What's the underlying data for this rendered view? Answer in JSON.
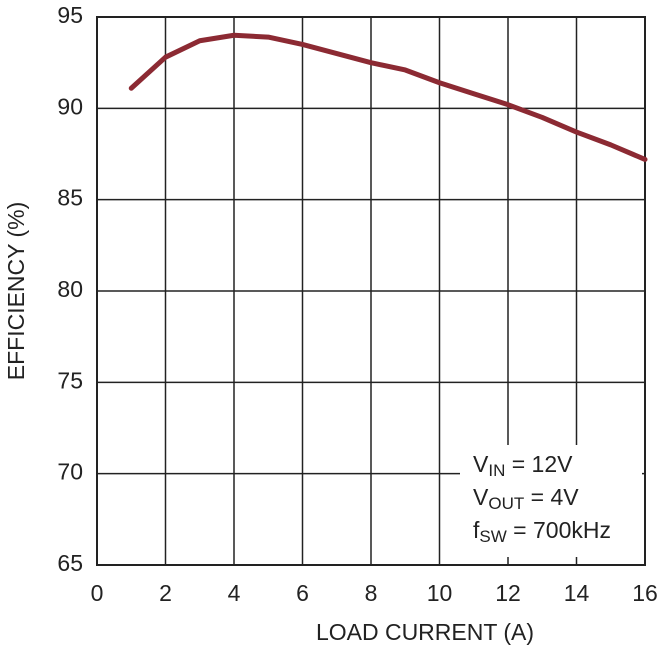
{
  "chart_data": {
    "type": "line",
    "xlabel": "LOAD CURRENT (A)",
    "ylabel": "EFFICIENCY (%)",
    "x": [
      1,
      2,
      3,
      4,
      5,
      6,
      7,
      8,
      9,
      10,
      11,
      12,
      13,
      14,
      15,
      16
    ],
    "values": [
      91.1,
      92.8,
      93.7,
      94.0,
      93.9,
      93.5,
      93.0,
      92.5,
      92.1,
      91.4,
      90.8,
      90.2,
      89.5,
      88.7,
      88.0,
      87.2
    ],
    "color": "#8c2a33",
    "xlim": [
      0,
      16
    ],
    "xticks": [
      0,
      2,
      4,
      6,
      8,
      10,
      12,
      14,
      16
    ],
    "ylim": [
      65,
      95
    ],
    "yticks": [
      65,
      70,
      75,
      80,
      85,
      90,
      95
    ],
    "grid": true,
    "annotations": [
      {
        "main": "V",
        "sub": "IN",
        "rest": " = 12V"
      },
      {
        "main": "V",
        "sub": "OUT",
        "rest": " = 4V"
      },
      {
        "main": "f",
        "sub": "SW",
        "rest": " = 700kHz"
      }
    ]
  }
}
